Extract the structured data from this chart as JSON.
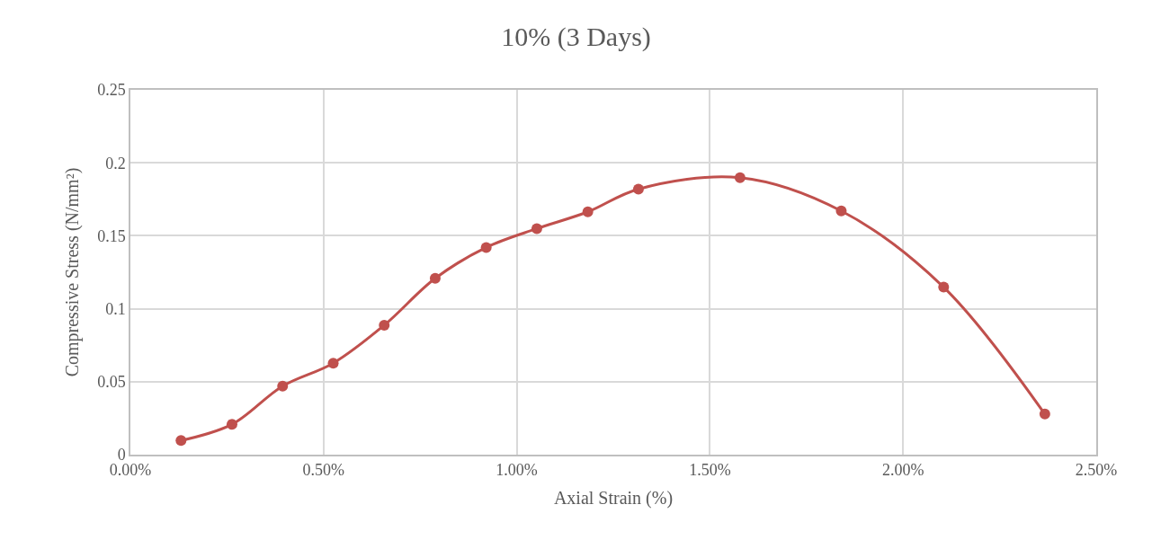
{
  "chart_data": {
    "type": "line",
    "title": "10% (3 Days)",
    "xlabel": "Axial Strain (%)",
    "ylabel": "Compressive Stress (N/mm²)",
    "x": [
      0.131,
      0.263,
      0.394,
      0.525,
      0.657,
      0.789,
      0.921,
      1.052,
      1.184,
      1.315,
      1.578,
      1.84,
      2.105,
      2.367
    ],
    "series": [
      {
        "color": "#c0504d",
        "values": [
          0.0097,
          0.0208,
          0.047,
          0.0627,
          0.0887,
          0.1208,
          0.142,
          0.1549,
          0.1664,
          0.182,
          0.1898,
          0.167,
          0.1148,
          0.0278
        ]
      }
    ],
    "xlim": [
      0,
      2.5
    ],
    "xticks": [
      {
        "value": 0,
        "label": "0.00%"
      },
      {
        "value": 0.5,
        "label": "0.50%"
      },
      {
        "value": 1,
        "label": "1.00%"
      },
      {
        "value": 1.5,
        "label": "1.50%"
      },
      {
        "value": 2,
        "label": "2.00%"
      },
      {
        "value": 2.5,
        "label": "2.50%"
      }
    ],
    "ylim": [
      0,
      0.25
    ],
    "yticks": [
      0,
      0.05,
      0.1,
      0.15,
      0.2,
      0.25
    ],
    "grid": true,
    "marker": "circle",
    "line_style": "solid"
  }
}
